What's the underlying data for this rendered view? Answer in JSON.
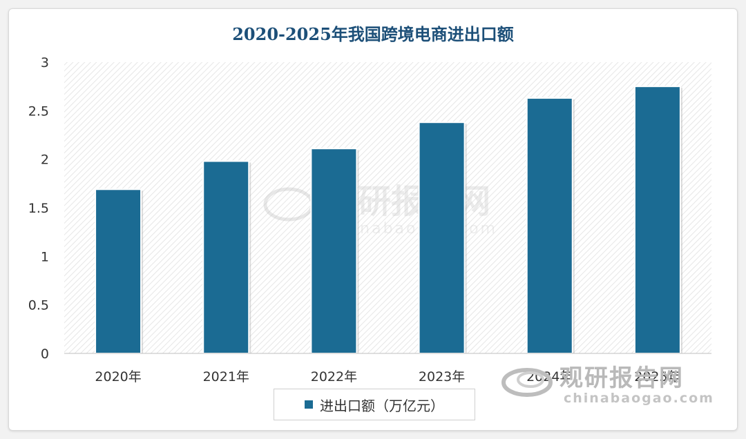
{
  "chart_data": {
    "type": "bar",
    "title": "2020-2025年我国跨境电商进出口额",
    "categories": [
      "2020年",
      "2021年",
      "2022年",
      "2023年",
      "2024年",
      "2025年"
    ],
    "series": [
      {
        "name": "进出口额（万亿元）",
        "values": [
          1.69,
          1.98,
          2.11,
          2.38,
          2.63,
          2.75
        ]
      }
    ],
    "ylim": [
      0,
      3
    ],
    "yticks": [
      "0",
      "0.5",
      "1",
      "1.5",
      "2",
      "2.5",
      "3"
    ],
    "legend_position": "bottom",
    "bar_color": "#1b6b93",
    "grid": false
  },
  "watermark": {
    "brand": "观研报告网",
    "url": "chinabaogao.com",
    "color": "#b9b9b9"
  }
}
